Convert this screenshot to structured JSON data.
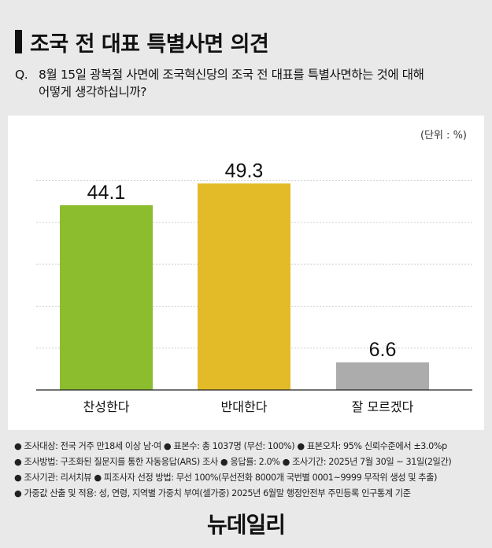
{
  "header": {
    "title": "조국 전 대표 특별사면 의견",
    "question_prefix": "Q.",
    "question_line1": "8월 15일 광복절 사면에 조국혁신당의 조국 전 대표를 특별사면하는 것에 대해",
    "question_line2": "어떻게 생각하십니까?"
  },
  "chart_data": {
    "type": "bar",
    "categories": [
      "찬성한다",
      "반대한다",
      "잘 모르겠다"
    ],
    "values": [
      44.1,
      49.3,
      6.6
    ],
    "value_labels": [
      "44.1",
      "49.3",
      "6.6"
    ],
    "colors": [
      "#8cbd2e",
      "#e3bb28",
      "#acacac"
    ],
    "unit_label": "(단위 : %)",
    "ylim": [
      0,
      55
    ],
    "grid": true,
    "gridlines": [
      10,
      20,
      30,
      40,
      50
    ]
  },
  "footnotes": [
    "● 조사대상: 전국 거주 만18세 이상 남·여  ● 표본수: 총 1037명 (무선: 100%)  ● 표본오차: 95% 신뢰수준에서 ±3.0%p",
    "● 조사방법: 구조화된 질문지를 통한 자동응답(ARS) 조사  ● 응답률: 2.0%  ● 조사기간: 2025년 7월 30일 ~ 31일(2일간)",
    "● 조사기관: 리서치뷰  ● 피조사자 선정 방법: 무선 100%(무선전화 8000개 국번별 0001~9999 무작위 생성 및 추출)",
    "● 가중값 산출 및 적용: 성, 연령, 지역별 가중치 부여(셀가중) 2025년 6월말 행정안전부 주민등록 인구통계 기준"
  ],
  "logo": "뉴데일리"
}
